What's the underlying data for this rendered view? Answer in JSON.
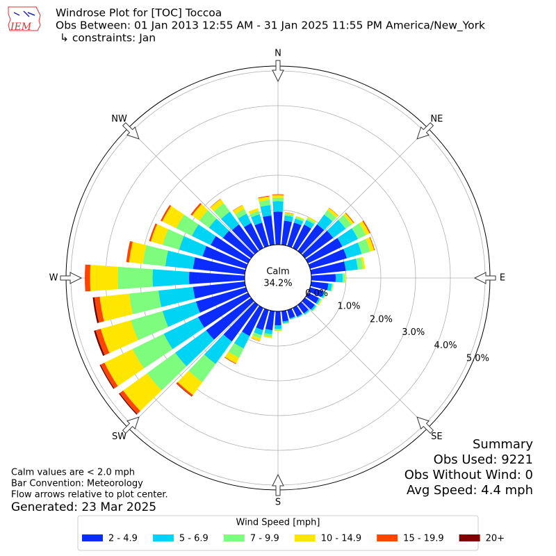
{
  "logo": "IEM",
  "chart_data": {
    "type": "windrose",
    "title": "Windrose Plot for [TOC] Toccoa",
    "subtitle": "Obs Between: 01 Jan 2013 12:55 AM - 31 Jan 2025 11:55 PM America/New_York",
    "constraints": "↳ constraints: Jan",
    "x": [
      0,
      10,
      20,
      30,
      40,
      50,
      60,
      70,
      80,
      90,
      100,
      110,
      120,
      130,
      140,
      150,
      160,
      170,
      180,
      190,
      200,
      210,
      220,
      230,
      240,
      250,
      260,
      270,
      280,
      290,
      300,
      310,
      320,
      330,
      340,
      350
    ],
    "compass": [
      "N",
      "NE",
      "E",
      "SE",
      "S",
      "SW",
      "W",
      "NW"
    ],
    "ylim": [
      0,
      5.14
    ],
    "yticks": [
      {
        "value": 0,
        "label": "0.0%"
      },
      {
        "value": 1,
        "label": "1.0%"
      },
      {
        "value": 2,
        "label": "2.0%"
      },
      {
        "value": 3,
        "label": "3.0%"
      },
      {
        "value": 4,
        "label": "4.0%"
      },
      {
        "value": 5,
        "label": "5.0%"
      }
    ],
    "grid": true,
    "calm": {
      "label": "Calm",
      "value": 34.2,
      "value_label": "34.2%"
    },
    "legend_title": "Wind Speed [mph]",
    "series": [
      {
        "name": "2 - 4.9",
        "color": "#0a2cff",
        "values": [
          0.95,
          0.7,
          0.7,
          0.75,
          0.95,
          1.0,
          1.1,
          1.1,
          1.0,
          0.7,
          0.5,
          0.4,
          0.35,
          0.35,
          0.3,
          0.28,
          0.25,
          0.3,
          0.4,
          0.55,
          0.6,
          0.9,
          1.3,
          1.6,
          1.6,
          1.5,
          1.5,
          1.6,
          1.5,
          1.3,
          1.2,
          1.0,
          0.95,
          0.8,
          0.7,
          0.85
        ]
      },
      {
        "name": "5 - 6.9",
        "color": "#00d4f5",
        "values": [
          0.3,
          0.15,
          0.12,
          0.15,
          0.35,
          0.45,
          0.5,
          0.45,
          0.35,
          0.2,
          0.1,
          0.06,
          0.05,
          0.05,
          0.04,
          0.03,
          0.03,
          0.05,
          0.1,
          0.12,
          0.15,
          0.4,
          0.8,
          1.1,
          1.1,
          1.0,
          1.0,
          1.05,
          0.8,
          0.7,
          0.6,
          0.5,
          0.45,
          0.3,
          0.25,
          0.3
        ]
      },
      {
        "name": "7 - 9.9",
        "color": "#7dfc7d",
        "values": [
          0.1,
          0.05,
          0.05,
          0.06,
          0.15,
          0.2,
          0.25,
          0.25,
          0.15,
          0.07,
          0.03,
          0.02,
          0.02,
          0.02,
          0.02,
          0.01,
          0.01,
          0.02,
          0.05,
          0.07,
          0.1,
          0.3,
          0.65,
          1.0,
          1.0,
          0.95,
          0.85,
          1.0,
          0.65,
          0.5,
          0.5,
          0.35,
          0.3,
          0.15,
          0.1,
          0.15
        ]
      },
      {
        "name": "10 - 14.9",
        "color": "#ffe600",
        "values": [
          0.08,
          0.03,
          0.03,
          0.04,
          0.08,
          0.08,
          0.12,
          0.12,
          0.06,
          0.01,
          0.01,
          0.01,
          0.03,
          0.01,
          0,
          0,
          0,
          0.01,
          0.02,
          0.04,
          0.08,
          0.18,
          0.45,
          0.85,
          0.9,
          0.9,
          0.85,
          0.8,
          0.4,
          0.35,
          0.45,
          0.25,
          0.15,
          0.12,
          0.08,
          0.1
        ]
      },
      {
        "name": "15 - 19.9",
        "color": "#ff4500",
        "values": [
          0.02,
          0.01,
          0,
          0,
          0.01,
          0.02,
          0.03,
          0.02,
          0,
          0,
          0,
          0,
          0,
          0,
          0,
          0,
          0,
          0,
          0,
          0,
          0.01,
          0.02,
          0.05,
          0.12,
          0.12,
          0.15,
          0.15,
          0.15,
          0.08,
          0.05,
          0.05,
          0.05,
          0.01,
          0.01,
          0,
          0.02
        ]
      },
      {
        "name": "20+",
        "color": "#7f0000",
        "values": [
          0,
          0,
          0,
          0,
          0,
          0,
          0,
          0,
          0,
          0,
          0,
          0,
          0,
          0,
          0,
          0,
          0,
          0,
          0,
          0,
          0,
          0,
          0.01,
          0.03,
          0.03,
          0.05,
          0.05,
          0,
          0,
          0,
          0,
          0,
          0,
          0,
          0,
          0
        ]
      }
    ],
    "summary": [
      "Summary",
      "Obs Used: 9221",
      "Obs Without Wind: 0",
      "Avg Speed: 4.4 mph"
    ],
    "notes": [
      "Calm values are < 2.0 mph",
      "Bar Convention: Meteorology",
      "Flow arrows relative to plot center."
    ],
    "generated": "Generated: 23 Mar 2025"
  }
}
